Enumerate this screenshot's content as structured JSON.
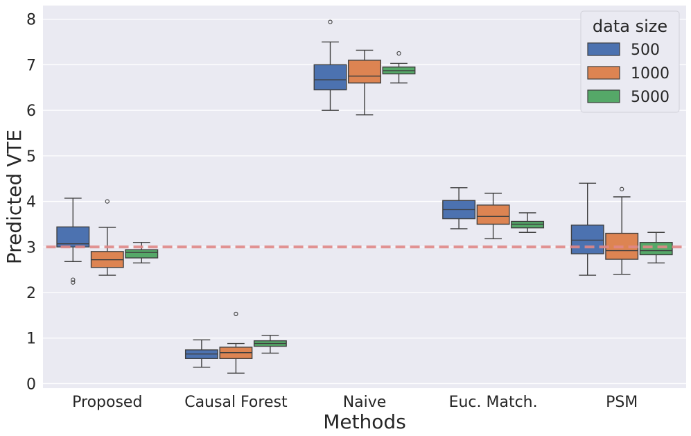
{
  "chart_data": {
    "type": "boxplot",
    "title": "",
    "xlabel": "Methods",
    "ylabel": "Predicted VTE",
    "ylim": [
      -0.1,
      8.3
    ],
    "yticks": [
      0,
      1,
      2,
      3,
      4,
      5,
      6,
      7,
      8
    ],
    "categories": [
      "Proposed",
      "Causal Forest",
      "Naive",
      "Euc. Match.",
      "PSM"
    ],
    "reference_line": {
      "y": 3.0,
      "style": "dashed",
      "color": "#e08888"
    },
    "legend": {
      "title": "data size",
      "position": "top-right"
    },
    "series": [
      {
        "name": "500",
        "color": "#4c72b0",
        "boxes": [
          {
            "whislo": 2.68,
            "q1": 3.0,
            "med": 3.07,
            "q3": 3.44,
            "whishi": 4.07,
            "fliers": [
              2.22,
              2.28
            ]
          },
          {
            "whislo": 0.36,
            "q1": 0.55,
            "med": 0.65,
            "q3": 0.74,
            "whishi": 0.96,
            "fliers": []
          },
          {
            "whislo": 6.0,
            "q1": 6.45,
            "med": 6.67,
            "q3": 7.0,
            "whishi": 7.5,
            "fliers": [
              7.94
            ]
          },
          {
            "whislo": 3.4,
            "q1": 3.62,
            "med": 3.82,
            "q3": 4.02,
            "whishi": 4.3,
            "fliers": []
          },
          {
            "whislo": 2.38,
            "q1": 2.85,
            "med": 3.15,
            "q3": 3.48,
            "whishi": 4.4,
            "fliers": []
          }
        ]
      },
      {
        "name": "1000",
        "color": "#dd8452",
        "boxes": [
          {
            "whislo": 2.38,
            "q1": 2.55,
            "med": 2.72,
            "q3": 2.9,
            "whishi": 3.43,
            "fliers": [
              4.0
            ]
          },
          {
            "whislo": 0.23,
            "q1": 0.55,
            "med": 0.68,
            "q3": 0.8,
            "whishi": 0.88,
            "fliers": [
              1.53
            ]
          },
          {
            "whislo": 5.9,
            "q1": 6.6,
            "med": 6.75,
            "q3": 7.1,
            "whishi": 7.32,
            "fliers": []
          },
          {
            "whislo": 3.18,
            "q1": 3.5,
            "med": 3.67,
            "q3": 3.92,
            "whishi": 4.18,
            "fliers": []
          },
          {
            "whislo": 2.4,
            "q1": 2.73,
            "med": 2.92,
            "q3": 3.3,
            "whishi": 4.1,
            "fliers": [
              4.27
            ]
          }
        ]
      },
      {
        "name": "5000",
        "color": "#55a868",
        "boxes": [
          {
            "whislo": 2.65,
            "q1": 2.76,
            "med": 2.88,
            "q3": 2.94,
            "whishi": 3.1,
            "fliers": []
          },
          {
            "whislo": 0.67,
            "q1": 0.82,
            "med": 0.88,
            "q3": 0.94,
            "whishi": 1.06,
            "fliers": []
          },
          {
            "whislo": 6.6,
            "q1": 6.8,
            "med": 6.87,
            "q3": 6.95,
            "whishi": 7.03,
            "fliers": [
              7.25
            ]
          },
          {
            "whislo": 3.32,
            "q1": 3.42,
            "med": 3.5,
            "q3": 3.56,
            "whishi": 3.75,
            "fliers": []
          },
          {
            "whislo": 2.65,
            "q1": 2.83,
            "med": 2.92,
            "q3": 3.1,
            "whishi": 3.32,
            "fliers": []
          }
        ]
      }
    ]
  }
}
